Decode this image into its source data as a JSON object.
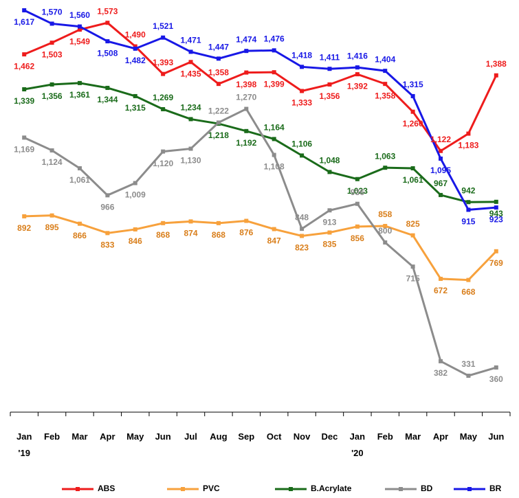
{
  "chart_data": {
    "type": "line",
    "categories": [
      "Jan\n'19",
      "Feb",
      "Mar",
      "Apr",
      "May",
      "Jun",
      "Jul",
      "Aug",
      "Sep",
      "Oct",
      "Nov",
      "Dec",
      "Jan\n'20",
      "Feb",
      "Mar",
      "Apr",
      "May",
      "Jun"
    ],
    "series": [
      {
        "name": "ABS",
        "color": "#ee1c1c",
        "values": [
          1462,
          1503,
          1549,
          1573,
          1490,
          1393,
          1435,
          1358,
          1398,
          1399,
          1333,
          1356,
          1392,
          1358,
          1260,
          1122,
          1183,
          1388
        ],
        "value_labels": [
          "1,462",
          "1,503",
          "1,549",
          "1,573",
          "1,490",
          "1,393",
          "1,435",
          "1,358",
          "1,398",
          "1,399",
          "1,333",
          "1,356",
          "1,392",
          "1,358",
          "1,260",
          "1,122",
          "1,183",
          "1,388"
        ]
      },
      {
        "name": "PVC",
        "color": "#f7a13c",
        "values": [
          892,
          895,
          866,
          833,
          846,
          868,
          874,
          868,
          876,
          847,
          823,
          835,
          856,
          858,
          825,
          672,
          668,
          769
        ]
      },
      {
        "name": "B.Acrylate",
        "color": "#1a6b1a",
        "values": [
          1339,
          1356,
          1361,
          1344,
          1315,
          1269,
          1234,
          1218,
          1192,
          1164,
          1106,
          1048,
          1023,
          1063,
          1061,
          967,
          942,
          943
        ],
        "value_labels": [
          "1,339",
          "1,356",
          "1,361",
          "1,344",
          "1,315",
          "1,269",
          "1,234",
          "1,218",
          "1,192",
          "1,164",
          "1,106",
          "1,048",
          "1,023",
          "1,063",
          "1,061",
          "967",
          "942",
          "943"
        ]
      },
      {
        "name": "BD",
        "color": "#8c8c8c",
        "values": [
          1169,
          1124,
          1061,
          966,
          1009,
          1120,
          1130,
          1222,
          1270,
          1108,
          848,
          913,
          936,
          800,
          715,
          382,
          331,
          360
        ],
        "value_labels": [
          "1,169",
          "1,124",
          "1,061",
          "966",
          "1,009",
          "1,120",
          "1,130",
          "1,222",
          "1,270",
          "1,108",
          "848",
          "913",
          "936",
          "800",
          "715",
          "382",
          "331",
          "360"
        ]
      },
      {
        "name": "BR",
        "color": "#1818e6",
        "values": [
          1617,
          1570,
          1560,
          1508,
          1482,
          1521,
          1471,
          1447,
          1474,
          1476,
          1418,
          1411,
          1416,
          1404,
          1315,
          1095,
          915,
          923
        ],
        "value_labels": [
          "1,617",
          "1,570",
          "1,560",
          "1,508",
          "1,482",
          "1,521",
          "1,471",
          "1,447",
          "1,474",
          "1,476",
          "1,418",
          "1,411",
          "1,416",
          "1,404",
          "1,315",
          "1,095",
          "915",
          "923"
        ]
      }
    ],
    "legend": "bottom"
  }
}
